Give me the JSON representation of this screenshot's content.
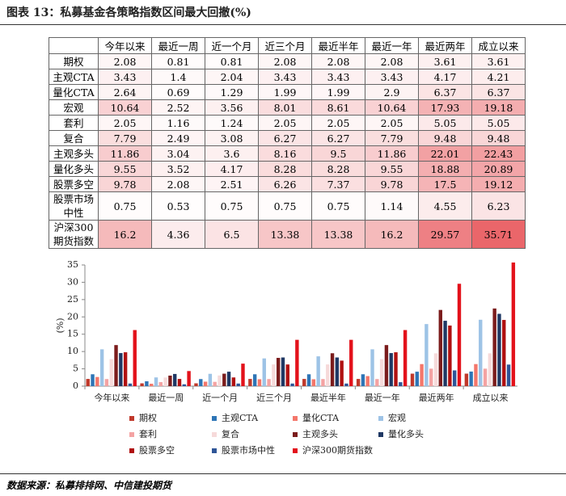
{
  "header": {
    "title": "图表 13：私募基金各策略指数区间最大回撤(%)"
  },
  "chart_data": {
    "type": "bar",
    "ylabel": "(%)",
    "categories": [
      "今年以来",
      "最近一周",
      "近一个月",
      "近三个月",
      "最近半年",
      "最近一年",
      "最近两年",
      "成立以来"
    ],
    "ylim": [
      0,
      35
    ],
    "yticks": [
      0,
      5,
      10,
      15,
      20,
      25,
      30,
      35
    ],
    "series": [
      {
        "name": "期权",
        "color": "#c0392b",
        "values": [
          2.08,
          0.81,
          0.81,
          2.08,
          2.08,
          2.08,
          3.61,
          3.61
        ]
      },
      {
        "name": "主观CTA",
        "color": "#2e75b6",
        "values": [
          3.43,
          1.4,
          2.04,
          3.43,
          3.43,
          3.43,
          4.17,
          4.21
        ]
      },
      {
        "name": "量化CTA",
        "color": "#f4776b",
        "values": [
          2.64,
          0.69,
          1.29,
          1.99,
          1.99,
          2.9,
          6.37,
          6.37
        ]
      },
      {
        "name": "宏观",
        "color": "#9dc3e6",
        "values": [
          10.64,
          2.52,
          3.56,
          8.01,
          8.61,
          10.64,
          17.93,
          19.18
        ]
      },
      {
        "name": "套利",
        "color": "#f4a3a3",
        "values": [
          2.05,
          1.16,
          1.24,
          2.05,
          2.05,
          2.05,
          5.05,
          5.05
        ]
      },
      {
        "name": "复合",
        "color": "#f6dada",
        "values": [
          7.79,
          2.49,
          3.08,
          6.27,
          6.27,
          7.79,
          9.48,
          9.48
        ]
      },
      {
        "name": "主观多头",
        "color": "#7b1c1c",
        "values": [
          11.86,
          3.04,
          3.6,
          8.16,
          9.5,
          11.86,
          22.01,
          22.43
        ]
      },
      {
        "name": "量化多头",
        "color": "#1f3864",
        "values": [
          9.55,
          3.52,
          4.17,
          8.28,
          8.28,
          9.55,
          18.88,
          20.89
        ]
      },
      {
        "name": "股票多空",
        "color": "#b01010",
        "values": [
          9.78,
          2.08,
          2.51,
          6.26,
          7.37,
          9.78,
          17.5,
          19.12
        ]
      },
      {
        "name": "股票市场中性",
        "color": "#2f5597",
        "values": [
          0.75,
          0.53,
          0.75,
          0.75,
          0.75,
          1.14,
          4.55,
          6.23
        ]
      },
      {
        "name": "沪深300期货指数",
        "color": "#e3121b",
        "values": [
          16.2,
          4.36,
          6.5,
          13.38,
          13.38,
          16.2,
          29.57,
          35.71
        ]
      }
    ]
  },
  "footer": {
    "source": "数据来源：私募排排网、中信建投期货"
  }
}
